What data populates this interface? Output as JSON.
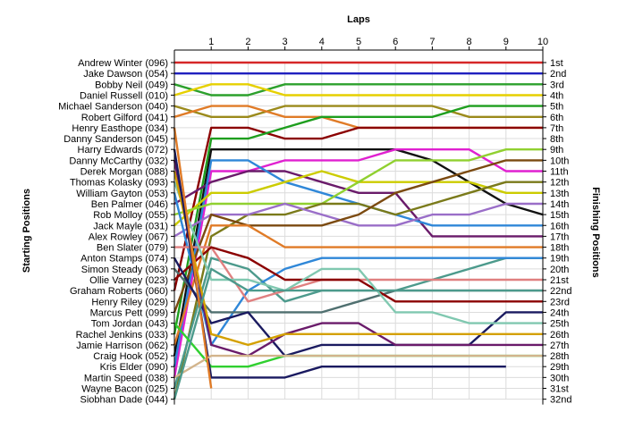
{
  "chart_data": {
    "type": "line",
    "title": "Laps",
    "ylabel_left": "Starting Positions",
    "ylabel_right": "Finishing Positions",
    "x_ticks": [
      "1",
      "2",
      "3",
      "4",
      "5",
      "6",
      "7",
      "8",
      "9",
      "10"
    ],
    "x_range": [
      0,
      10
    ],
    "y_range": [
      1,
      32
    ],
    "grid": "on",
    "starting_labels": [
      "Andrew Winter (096)",
      "Jake Dawson (054)",
      "Bobby Neil (049)",
      "Daniel Russell (010)",
      "Michael Sanderson (040)",
      "Robert Gilford (041)",
      "Henry Easthope (034)",
      "Danny Sanderson (045)",
      "Harry Edwards (072)",
      "Danny McCarthy (032)",
      "Derek Morgan (088)",
      "Thomas Kolasky (093)",
      "William Gayton (053)",
      "Ben Palmer (046)",
      "Rob Molloy (055)",
      "Jack Mayle (031)",
      "Alex Rowley (067)",
      "Ben Slater (079)",
      "Anton Stamps (074)",
      "Simon Steady (063)",
      "Ollie Varney (023)",
      "Graham Roberts (060)",
      "Henry Riley (029)",
      "Marcus Pett (099)",
      "Tom Jordan (043)",
      "Rachel Jenkins (033)",
      "Jamie Harrison (062)",
      "Craig Hook (052)",
      "Kris Elder (090)",
      "Martin Speed (038)",
      "Wayne Bacon (025)",
      "Siobhan Dade (044)"
    ],
    "finishing_labels": [
      "1st",
      "2nd",
      "3rd",
      "4th",
      "5th",
      "6th",
      "7th",
      "8th",
      "9th",
      "10th",
      "11th",
      "12th",
      "13th",
      "14th",
      "15th",
      "16th",
      "17th",
      "18th",
      "19th",
      "20th",
      "21st",
      "22nd",
      "23rd",
      "24th",
      "25th",
      "26th",
      "27th",
      "28th",
      "29th",
      "30th",
      "31st",
      "32nd"
    ],
    "series": [
      {
        "color": "#d62728",
        "positions": [
          1,
          1,
          1,
          1,
          1,
          1,
          1,
          1,
          1,
          1,
          1
        ]
      },
      {
        "color": "#1f1fbf",
        "positions": [
          2,
          2,
          2,
          2,
          2,
          2,
          2,
          2,
          2,
          2,
          2
        ]
      },
      {
        "color": "#2ca02c",
        "positions": [
          3,
          4,
          4,
          3,
          3,
          3,
          3,
          3,
          3,
          3,
          3
        ]
      },
      {
        "color": "#e6d000",
        "positions": [
          4,
          3,
          3,
          4,
          4,
          4,
          4,
          4,
          4,
          4,
          4
        ]
      },
      {
        "color": "#9b8a1b",
        "positions": [
          5,
          6,
          6,
          5,
          5,
          5,
          5,
          5,
          6,
          6,
          6
        ]
      },
      {
        "color": "#e07b27",
        "positions": [
          6,
          5,
          5,
          6,
          6,
          7,
          7,
          7,
          7,
          7,
          7
        ]
      },
      {
        "color": "#8b0000",
        "positions": [
          22,
          7,
          7,
          8,
          8,
          7,
          7,
          7,
          7,
          7,
          7
        ]
      },
      {
        "color": "#1e9e1e",
        "positions": [
          26,
          8,
          8,
          7,
          6,
          6,
          6,
          6,
          5,
          5,
          5
        ]
      },
      {
        "color": "#111111",
        "positions": [
          28,
          9,
          9,
          9,
          9,
          9,
          9,
          10,
          12,
          14,
          15
        ]
      },
      {
        "color": "#e020d0",
        "positions": [
          30,
          11,
          11,
          10,
          10,
          10,
          9,
          9,
          9,
          11,
          11
        ]
      },
      {
        "color": "#6a1b6a",
        "positions": [
          14,
          12,
          11,
          11,
          12,
          13,
          13,
          17,
          17,
          17,
          17
        ]
      },
      {
        "color": "#2f87d8",
        "positions": [
          29,
          10,
          10,
          12,
          13,
          14,
          15,
          16,
          16,
          16,
          16
        ]
      },
      {
        "color": "#cccc00",
        "positions": [
          16,
          13,
          13,
          12,
          11,
          12,
          12,
          12,
          12,
          13,
          13
        ]
      },
      {
        "color": "#90d030",
        "positions": [
          15,
          14,
          14,
          14,
          14,
          12,
          10,
          10,
          10,
          9,
          9
        ]
      },
      {
        "color": "#7a7a1a",
        "positions": [
          32,
          17,
          15,
          15,
          14,
          14,
          15,
          14,
          13,
          12,
          12
        ]
      },
      {
        "color": "#9a6ec8",
        "positions": [
          17,
          15,
          15,
          14,
          15,
          16,
          16,
          15,
          15,
          14,
          14
        ]
      },
      {
        "color": "#7b4a10",
        "positions": [
          24,
          15,
          16,
          16,
          16,
          15,
          13,
          12,
          11,
          10,
          10
        ]
      },
      {
        "color": "#e07b27",
        "positions": [
          27,
          16,
          16,
          18,
          18,
          18,
          18,
          18,
          18,
          18,
          18
        ]
      },
      {
        "color": "#4c9a8c",
        "positions": [
          31,
          19,
          20,
          23,
          22,
          22,
          22,
          21,
          20,
          19,
          19
        ]
      },
      {
        "color": "#2f87d8",
        "positions": [
          13,
          27,
          22,
          20,
          19,
          19,
          19,
          19,
          19,
          19,
          19
        ]
      },
      {
        "color": "#e08080",
        "positions": [
          18,
          18,
          23,
          22,
          21,
          21,
          21,
          21,
          21,
          21,
          21
        ]
      },
      {
        "color": "#4f6f6f",
        "positions": [
          20,
          24,
          24,
          24,
          24,
          23,
          22,
          22,
          22,
          22,
          22
        ]
      },
      {
        "color": "#8b0000",
        "positions": [
          21,
          18,
          19,
          21,
          21,
          21,
          23,
          23,
          23,
          23,
          23
        ]
      },
      {
        "color": "#1a1a60",
        "positions": [
          19,
          25,
          24,
          28,
          27,
          27,
          27,
          27,
          27,
          24,
          24
        ]
      },
      {
        "color": "#80c8b0",
        "positions": [
          12,
          21,
          21,
          22,
          20,
          20,
          24,
          24,
          25,
          25,
          25
        ]
      },
      {
        "color": "#6a1b6a",
        "positions": [
          10,
          27,
          28,
          26,
          25,
          25,
          27,
          27,
          27,
          27,
          27
        ]
      },
      {
        "color": "#d4a000",
        "positions": [
          11,
          26,
          27,
          26,
          26,
          26,
          26,
          26,
          26,
          26,
          26
        ]
      },
      {
        "color": "#30d030",
        "positions": [
          25,
          29,
          29,
          28,
          28,
          28,
          28,
          28,
          28,
          28,
          28
        ]
      },
      {
        "color": "#1a1a60",
        "positions": [
          9,
          30,
          30,
          30,
          29,
          29,
          29,
          29,
          29,
          29,
          null
        ]
      },
      {
        "color": "#d2b48c",
        "positions": [
          30,
          28,
          28,
          28,
          28,
          28,
          28,
          28,
          28,
          28,
          28
        ]
      },
      {
        "color": "#e07b27",
        "positions": [
          7,
          31,
          null,
          null,
          null,
          null,
          null,
          null,
          null,
          null,
          null
        ]
      },
      {
        "color": "#4c9a8c",
        "positions": [
          32,
          20,
          22,
          22,
          22,
          22,
          22,
          22,
          22,
          22,
          22
        ]
      }
    ]
  }
}
